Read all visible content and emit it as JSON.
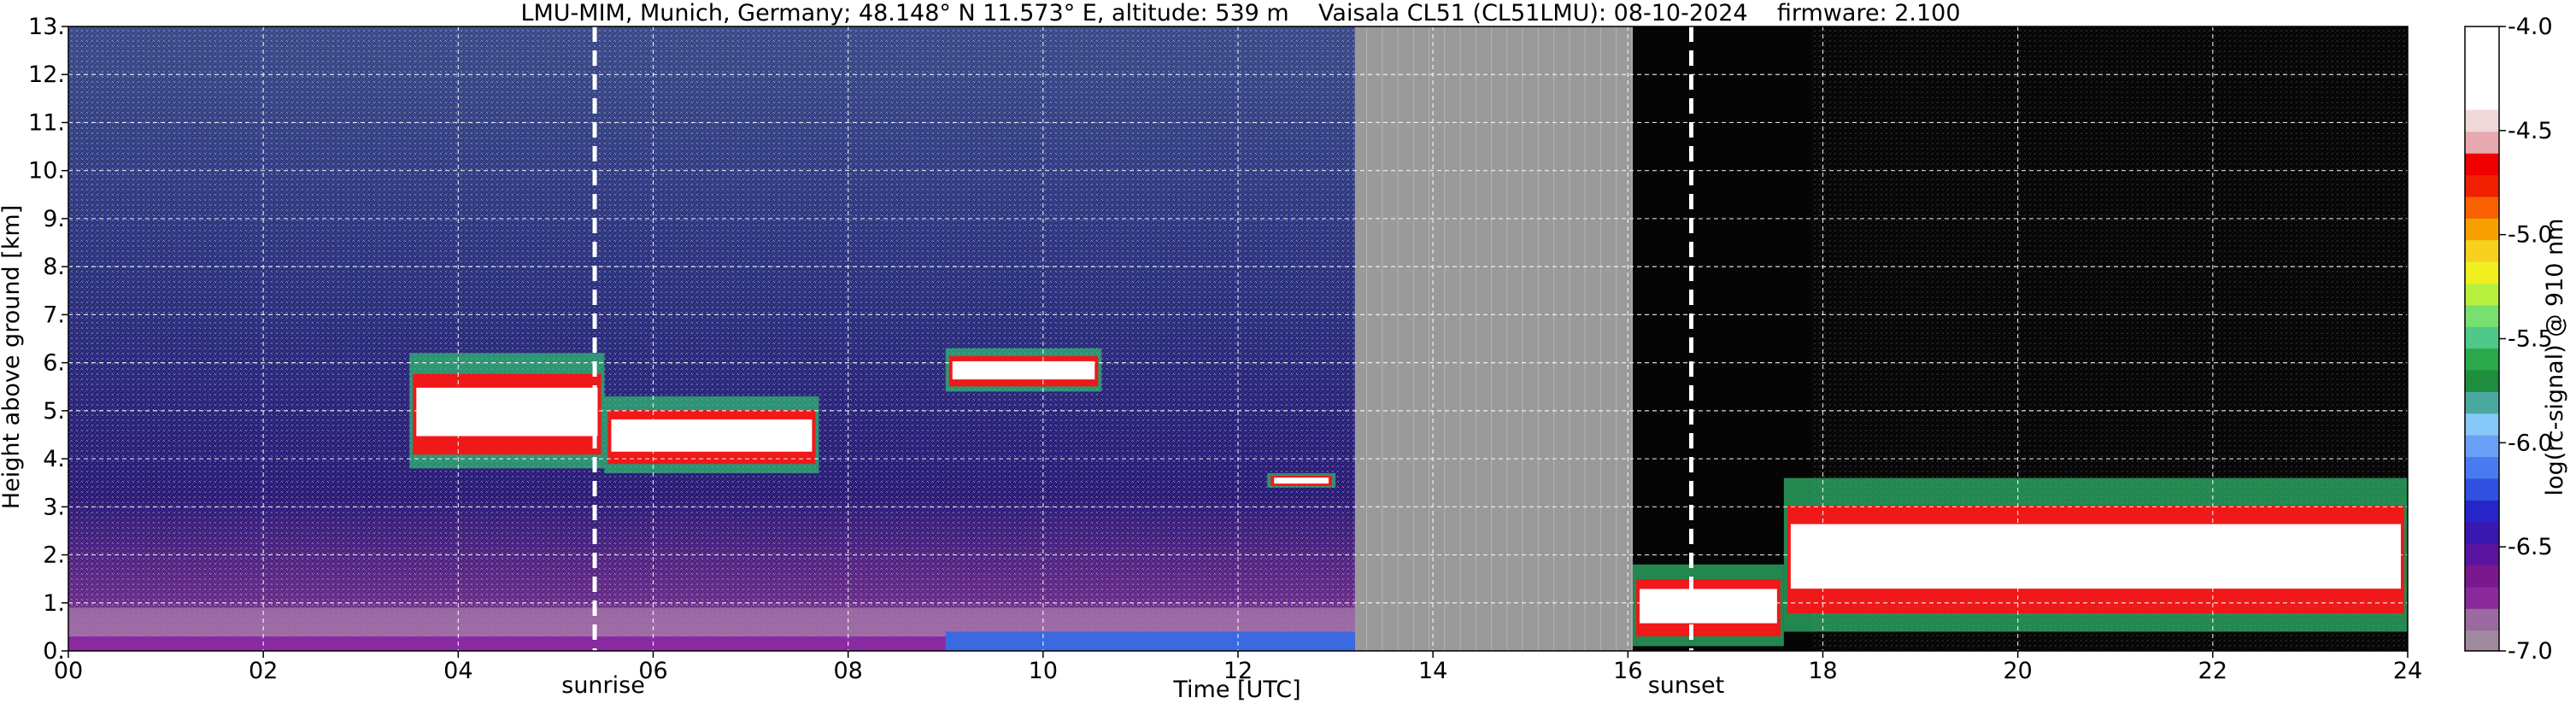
{
  "chart_data": {
    "type": "heatmap",
    "title": "LMU-MIM, Munich, Germany; 48.148° N 11.573° E, altitude: 539 m    Vaisala CL51 (CL51LMU): 08-10-2024    firmware: 2.100",
    "xlabel": "Time [UTC]",
    "ylabel": "Height above ground [km]",
    "xlim": [
      0,
      24
    ],
    "ylim": [
      0,
      13
    ],
    "x_ticks": [
      "00",
      "02",
      "04",
      "06",
      "08",
      "10",
      "12",
      "14",
      "16",
      "18",
      "20",
      "22",
      "24"
    ],
    "x_tick_values": [
      0,
      2,
      4,
      6,
      8,
      10,
      12,
      14,
      16,
      18,
      20,
      22,
      24
    ],
    "y_ticks": [
      "0.",
      "1.",
      "2.",
      "3.",
      "4.",
      "5.",
      "6.",
      "7.",
      "8.",
      "9.",
      "10.",
      "11.",
      "12.",
      "13."
    ],
    "y_tick_values": [
      0,
      1,
      2,
      3,
      4,
      5,
      6,
      7,
      8,
      9,
      10,
      11,
      12,
      13
    ],
    "grid": true,
    "colorbar": {
      "label": "log(rc-signal) @ 910 nm",
      "range": [
        -7.0,
        -4.0
      ],
      "tick_labels": [
        "-4.0",
        "-4.5",
        "-5.0",
        "-5.5",
        "-6.0",
        "-6.5",
        "-7.0"
      ],
      "tick_values": [
        -4.0,
        -4.5,
        -5.0,
        -5.5,
        -6.0,
        -6.5,
        -7.0
      ],
      "colors_low_to_high": [
        "#a08aa0",
        "#9a6aa0",
        "#8a2a9a",
        "#7a1890",
        "#5a14a0",
        "#3a18b0",
        "#2626c8",
        "#3050e0",
        "#4a7af0",
        "#6aa0f8",
        "#86c8f8",
        "#4aa8a0",
        "#1e8e3e",
        "#2aa84a",
        "#50c88a",
        "#78e070",
        "#b8f040",
        "#f0f020",
        "#f8d020",
        "#f8a000",
        "#f86000",
        "#f02000",
        "#f00000",
        "#e8a8b0",
        "#f0d8d8",
        "#ffffff"
      ]
    },
    "events": [
      {
        "label": "sunrise",
        "time": 5.4
      },
      {
        "label": "sunset",
        "time": 16.65
      }
    ],
    "missing_data": [
      {
        "from": 13.2,
        "to": 16.05
      }
    ],
    "features": [
      {
        "type": "aerosol_layer",
        "from": 0,
        "to": 13.2,
        "top": 0.9
      },
      {
        "type": "cloud",
        "from": 3.5,
        "to": 5.5,
        "base": 3.8,
        "top": 6.2
      },
      {
        "type": "cloud",
        "from": 5.5,
        "to": 7.7,
        "base": 3.7,
        "top": 5.3
      },
      {
        "type": "cloud",
        "from": 9.0,
        "to": 10.6,
        "base": 5.4,
        "top": 6.3
      },
      {
        "type": "cloud",
        "from": 12.3,
        "to": 13.0,
        "base": 3.4,
        "top": 3.7
      },
      {
        "type": "cloud",
        "from": 16.05,
        "to": 17.6,
        "base": 0.1,
        "top": 1.8
      },
      {
        "type": "cloud",
        "from": 17.6,
        "to": 24,
        "base": 0.4,
        "top": 3.6
      }
    ]
  }
}
